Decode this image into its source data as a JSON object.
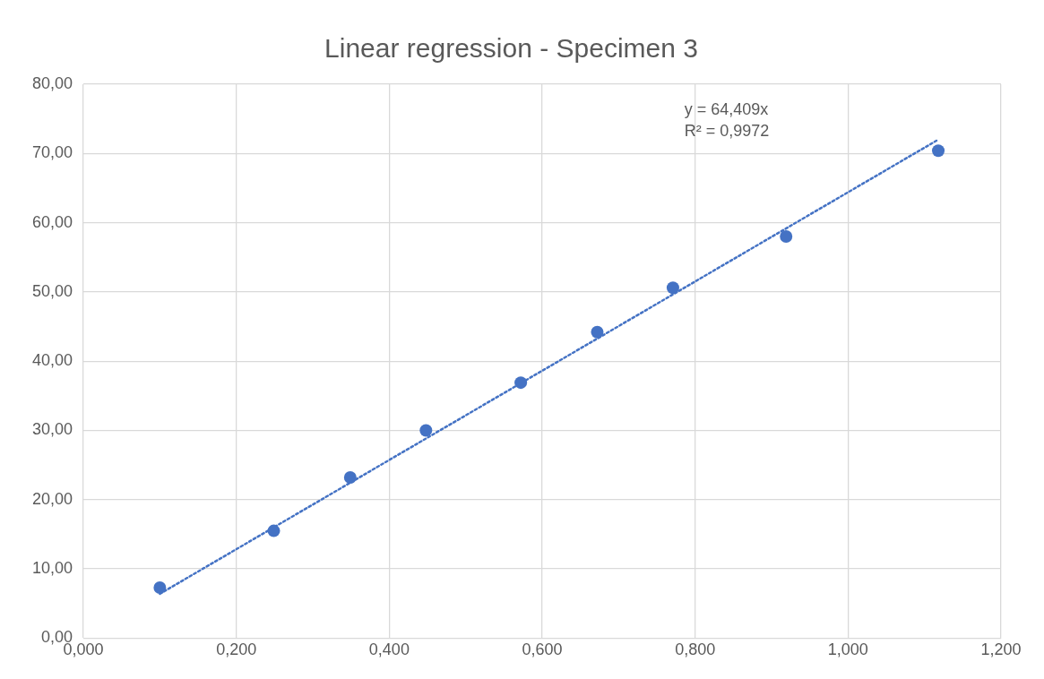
{
  "chart_data": {
    "type": "scatter",
    "title": "Linear regression - Specimen 3",
    "series": [
      {
        "type": "scatter",
        "color": "#4472c4",
        "marker": "circle",
        "x": [
          0.1,
          0.249,
          0.349,
          0.448,
          0.572,
          0.672,
          0.771,
          0.919,
          1.118
        ],
        "values": [
          7.3,
          15.5,
          23.2,
          30.0,
          36.9,
          44.2,
          50.6,
          58.0,
          70.4
        ]
      },
      {
        "type": "line",
        "color": "#4472c4",
        "line_style": "dotted",
        "marker": "none",
        "x": [
          0.1,
          1.118
        ],
        "values": [
          6.4,
          72.0
        ]
      }
    ],
    "xlim": [
      0,
      1.2
    ],
    "xticks": [
      {
        "value": 0,
        "label": "0,000"
      },
      {
        "value": 0.2,
        "label": "0,200"
      },
      {
        "value": 0.4,
        "label": "0,400"
      },
      {
        "value": 0.6,
        "label": "0,600"
      },
      {
        "value": 0.8,
        "label": "0,800"
      },
      {
        "value": 1.0,
        "label": "1,000"
      },
      {
        "value": 1.2,
        "label": "1,200"
      }
    ],
    "ylim": [
      0,
      80
    ],
    "yticks": [
      {
        "value": 0,
        "label": "0,00"
      },
      {
        "value": 10,
        "label": "10,00"
      },
      {
        "value": 20,
        "label": "20,00"
      },
      {
        "value": 30,
        "label": "30,00"
      },
      {
        "value": 40,
        "label": "40,00"
      },
      {
        "value": 50,
        "label": "50,00"
      },
      {
        "value": 60,
        "label": "60,00"
      },
      {
        "value": 70,
        "label": "70,00"
      },
      {
        "value": 80,
        "label": "80,00"
      }
    ],
    "grid": true,
    "annotations": [
      "y = 64,409x",
      "R² = 0,9972"
    ]
  }
}
